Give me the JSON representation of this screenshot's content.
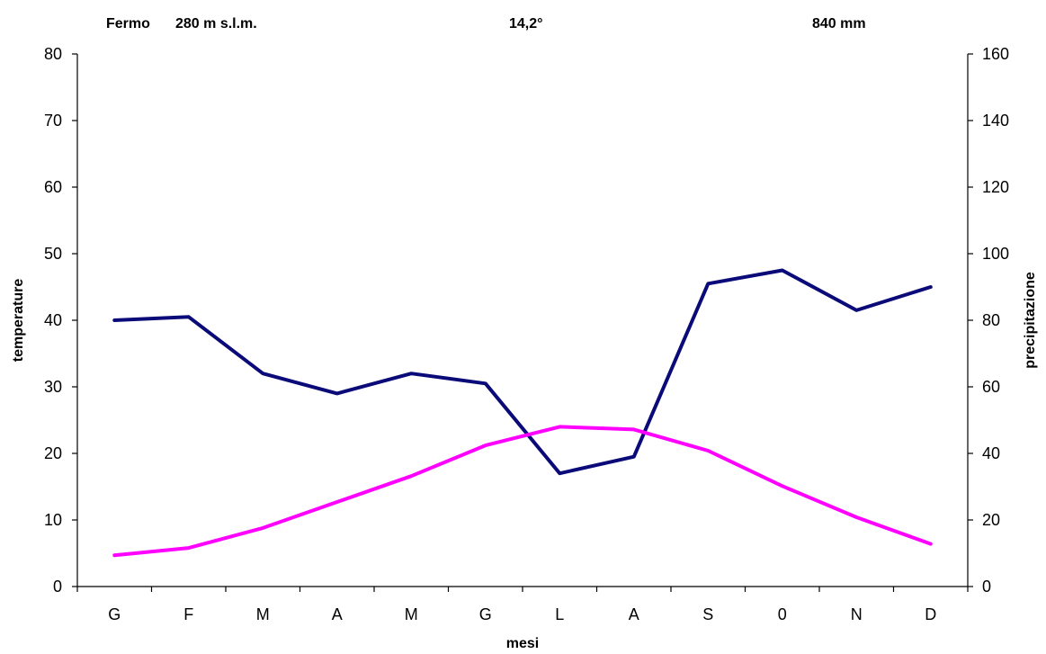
{
  "chart_data": {
    "type": "line",
    "header": {
      "station": "Fermo",
      "altitude": "280 m s.l.m.",
      "mean_temperature": "14,2°",
      "annual_precipitation": "840 mm"
    },
    "categories": [
      "G",
      "F",
      "M",
      "A",
      "M",
      "G",
      "L",
      "A",
      "S",
      "0",
      "N",
      "D"
    ],
    "xlabel": "mesi",
    "ylabel_left": "temperature",
    "ylabel_right": "precipitazione",
    "ylim_left": [
      0,
      80
    ],
    "ylim_right": [
      0,
      160
    ],
    "yticks_left": [
      0,
      10,
      20,
      30,
      40,
      50,
      60,
      70,
      80
    ],
    "yticks_right": [
      0,
      20,
      40,
      60,
      80,
      100,
      120,
      140,
      160
    ],
    "grid": false,
    "legend": "none",
    "series": [
      {
        "axis": "right",
        "color": "#0a0a78",
        "values": [
          80,
          81,
          64,
          58,
          64,
          61,
          34,
          39,
          91,
          95,
          83,
          90
        ]
      },
      {
        "axis": "left",
        "color": "#ff00ff",
        "values": [
          4.7,
          5.8,
          8.8,
          12.7,
          16.6,
          21.2,
          24.0,
          23.6,
          20.4,
          15.1,
          10.4,
          6.4
        ]
      }
    ]
  }
}
